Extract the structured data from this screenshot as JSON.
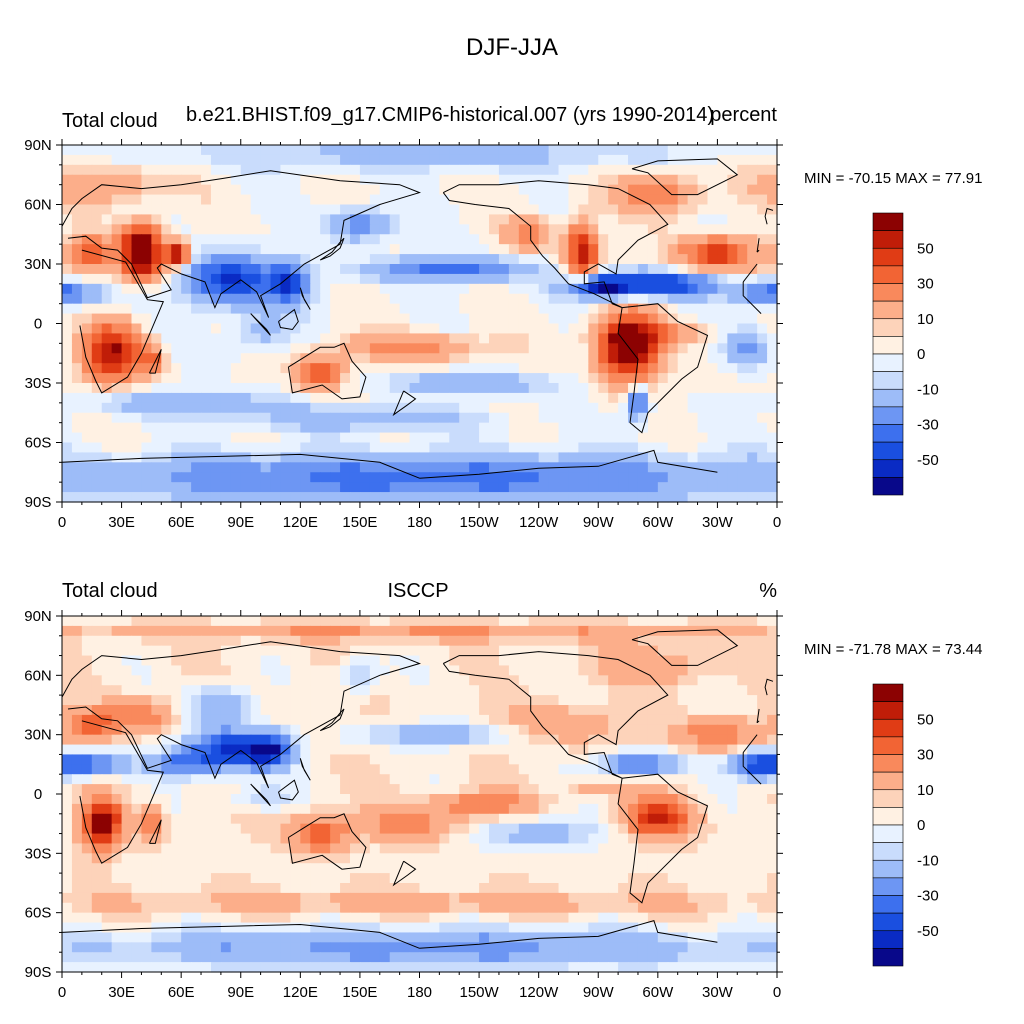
{
  "figure": {
    "title": "DJF-JJA"
  },
  "lat_labels": [
    "90N",
    "60N",
    "30N",
    "0",
    "30S",
    "60S",
    "90S"
  ],
  "lon_labels": [
    "0",
    "30E",
    "60E",
    "90E",
    "120E",
    "150E",
    "180",
    "150W",
    "120W",
    "90W",
    "60W",
    "30W",
    "0"
  ],
  "palette": [
    "#08088a",
    "#0a2bc4",
    "#1a4fe0",
    "#3d70ee",
    "#6d96f3",
    "#9dbcf8",
    "#c9dcfc",
    "#e8f2ff",
    "#fff1e3",
    "#fdd3ba",
    "#fcae8a",
    "#f9895c",
    "#f26434",
    "#e03c15",
    "#c01d08",
    "#8c0202"
  ],
  "panels": [
    {
      "id": "model",
      "left_title": "Total cloud",
      "center_title": "b.e21.BHIST.f09_g17.CMIP6-historical.007 (yrs 1990-2014)",
      "right_title": "percent",
      "stats": "MIN = -70.15 MAX =  77.91",
      "colorbar_labels": [
        "50",
        "30",
        "10",
        "0",
        "-10",
        "-30",
        "-50"
      ],
      "field": {
        "background": 0.6,
        "features": [
          [
            15,
            35,
            38,
            12,
            9,
            22
          ],
          [
            40,
            40,
            70,
            10,
            10,
            20
          ],
          [
            58,
            35,
            70,
            6,
            6,
            28
          ],
          [
            40,
            28,
            45,
            10,
            8,
            12
          ],
          [
            25,
            -15,
            60,
            14,
            14,
            18
          ],
          [
            45,
            -18,
            30,
            6,
            8,
            14
          ],
          [
            130,
            -25,
            35,
            12,
            9,
            18
          ],
          [
            175,
            -12,
            25,
            35,
            7,
            15
          ],
          [
            285,
            -12,
            80,
            14,
            16,
            16
          ],
          [
            262,
            35,
            55,
            8,
            16,
            22
          ],
          [
            300,
            65,
            30,
            20,
            10,
            18
          ],
          [
            330,
            35,
            45,
            20,
            9,
            14
          ],
          [
            300,
            20,
            -55,
            30,
            6,
            12
          ],
          [
            270,
            18,
            -50,
            16,
            6,
            12
          ],
          [
            85,
            22,
            -55,
            22,
            12,
            15
          ],
          [
            115,
            20,
            -45,
            10,
            10,
            14
          ],
          [
            0,
            15,
            -40,
            20,
            6,
            12
          ],
          [
            290,
            -40,
            -40,
            5,
            8,
            18
          ],
          [
            100,
            -5,
            -15,
            15,
            10,
            10
          ],
          [
            195,
            27,
            -35,
            40,
            6,
            8
          ],
          [
            205,
            -30,
            -22,
            40,
            5,
            6
          ],
          [
            60,
            -40,
            -20,
            50,
            6,
            6
          ],
          [
            150,
            -48,
            -18,
            60,
            6,
            6
          ],
          [
            180,
            -78,
            -35,
            180,
            12,
            -2
          ],
          [
            180,
            85,
            -15,
            120,
            8,
            0
          ],
          [
            150,
            50,
            -30,
            15,
            8,
            20
          ],
          [
            345,
            -12,
            -25,
            10,
            8,
            12
          ],
          [
            235,
            45,
            25,
            12,
            8,
            14
          ],
          [
            300,
            -5,
            18,
            30,
            5,
            6
          ],
          [
            20,
            70,
            20,
            30,
            10,
            14
          ]
        ]
      }
    },
    {
      "id": "obs",
      "left_title": "Total cloud",
      "center_title": "ISCCP",
      "right_title": "%",
      "stats": "MIN = -71.78 MAX =  73.44",
      "colorbar_labels": [
        "50",
        "30",
        "10",
        "0",
        "-10",
        "-30",
        "-50"
      ],
      "field": {
        "background": 3.5,
        "features": [
          [
            20,
            -15,
            62,
            10,
            12,
            20
          ],
          [
            45,
            -15,
            25,
            6,
            8,
            12
          ],
          [
            130,
            -20,
            35,
            14,
            9,
            18
          ],
          [
            300,
            -12,
            48,
            16,
            10,
            16
          ],
          [
            15,
            35,
            30,
            15,
            8,
            16
          ],
          [
            40,
            40,
            25,
            15,
            8,
            16
          ],
          [
            85,
            22,
            -58,
            22,
            10,
            15
          ],
          [
            105,
            22,
            -45,
            10,
            8,
            14
          ],
          [
            5,
            15,
            -48,
            25,
            6,
            14
          ],
          [
            60,
            15,
            -30,
            15,
            6,
            10
          ],
          [
            290,
            15,
            -40,
            18,
            6,
            14
          ],
          [
            330,
            30,
            25,
            22,
            8,
            12
          ],
          [
            300,
            65,
            15,
            30,
            10,
            14
          ],
          [
            250,
            35,
            15,
            30,
            10,
            14
          ],
          [
            210,
            -5,
            25,
            25,
            6,
            12
          ],
          [
            175,
            -15,
            20,
            30,
            8,
            12
          ],
          [
            180,
            -78,
            -28,
            180,
            10,
            -2
          ],
          [
            150,
            60,
            -18,
            10,
            8,
            20
          ],
          [
            80,
            45,
            -25,
            15,
            10,
            18
          ],
          [
            190,
            30,
            -20,
            40,
            6,
            8
          ],
          [
            240,
            -20,
            -20,
            30,
            8,
            10
          ],
          [
            350,
            15,
            -25,
            10,
            8,
            12
          ],
          [
            180,
            -55,
            12,
            180,
            6,
            0
          ],
          [
            180,
            82,
            18,
            180,
            4,
            0
          ],
          [
            270,
            3,
            15,
            15,
            4,
            10
          ],
          [
            100,
            -2,
            -15,
            15,
            6,
            10
          ]
        ]
      }
    }
  ]
}
